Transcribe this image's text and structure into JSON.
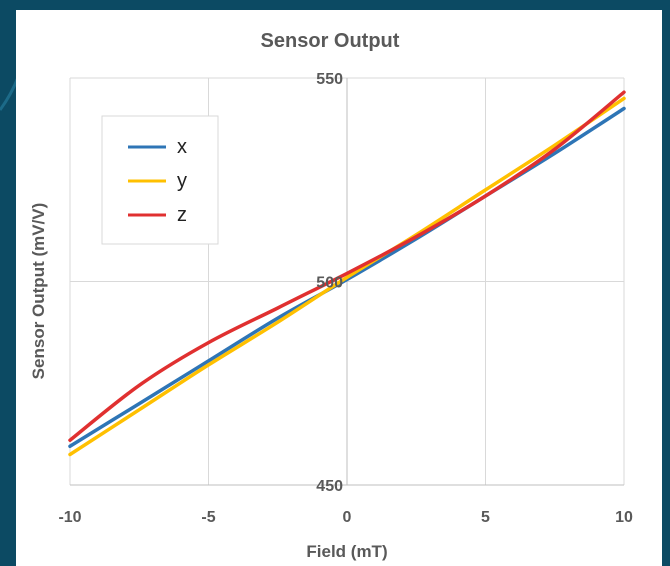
{
  "chart_data": {
    "type": "line",
    "title": "Sensor Output",
    "xlabel": "Field (mT)",
    "ylabel": "Sensor Output (mV/V)",
    "xlim": [
      -10,
      10
    ],
    "ylim": [
      450,
      550
    ],
    "xticks": [
      -10,
      -5,
      0,
      5,
      10
    ],
    "yticks": [
      450,
      500,
      550
    ],
    "x_tick_labels": [
      "-10",
      "-5",
      "0",
      "5",
      "10"
    ],
    "y_tick_labels": [
      "450",
      "500",
      "550"
    ],
    "grid": true,
    "legend_position": "top-left",
    "x": [
      -10,
      -7.5,
      -5,
      -2.5,
      0,
      2.5,
      5,
      7.5,
      10
    ],
    "series": [
      {
        "name": "x",
        "color": "#2e75b6",
        "values": [
          459.5,
          470.0,
          480.5,
          491.0,
          500.5,
          510.5,
          521.0,
          531.5,
          542.5
        ]
      },
      {
        "name": "y",
        "color": "#ffc000",
        "values": [
          457.5,
          468.5,
          479.5,
          490.0,
          501.0,
          511.5,
          522.5,
          533.5,
          545.0
        ]
      },
      {
        "name": "z",
        "color": "#e03030",
        "values": [
          461.0,
          474.5,
          485.0,
          493.5,
          502.0,
          511.0,
          521.0,
          532.5,
          546.5
        ]
      }
    ]
  }
}
